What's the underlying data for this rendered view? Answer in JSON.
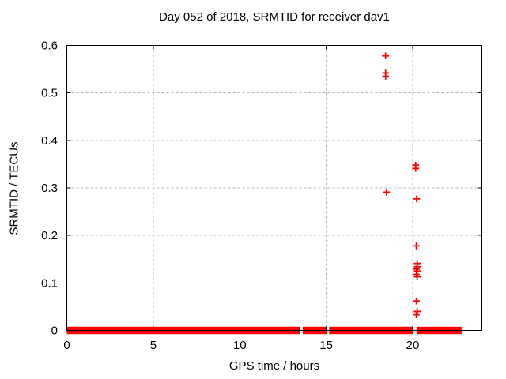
{
  "chart_data": {
    "type": "scatter",
    "title": "Day 052 of 2018, SRMTID for receiver dav1",
    "xlabel": "GPS time / hours",
    "ylabel": "SRMTID / TECUs",
    "xlim": [
      0,
      24
    ],
    "ylim": [
      0,
      0.6
    ],
    "xticks": [
      0,
      5,
      10,
      15,
      20
    ],
    "yticks": [
      0,
      0.1,
      0.2,
      0.3,
      0.4,
      0.5,
      0.6
    ],
    "grid": true,
    "legend_position": "none",
    "marker_style": "plus",
    "marker_color": "#ff0000",
    "grid_color": "#b4b4b4",
    "border_color": "#000000",
    "series": [
      {
        "name": "SRMTID",
        "color": "#ff0000",
        "outlier_points": [
          [
            18.43,
            0.578
          ],
          [
            18.43,
            0.542
          ],
          [
            18.43,
            0.535
          ],
          [
            18.49,
            0.291
          ],
          [
            20.17,
            0.348
          ],
          [
            20.17,
            0.341
          ],
          [
            20.23,
            0.277
          ],
          [
            20.21,
            0.178
          ],
          [
            20.26,
            0.141
          ],
          [
            20.26,
            0.134
          ],
          [
            20.21,
            0.129
          ],
          [
            20.26,
            0.125
          ],
          [
            20.21,
            0.118
          ],
          [
            20.26,
            0.113
          ],
          [
            20.21,
            0.062
          ],
          [
            20.26,
            0.04
          ],
          [
            20.21,
            0.033
          ]
        ],
        "zero_band_value": 0,
        "zero_band_segments_hours": [
          [
            0,
            13.5
          ],
          [
            13.64,
            15.03
          ],
          [
            15.17,
            20.01
          ],
          [
            20.22,
            22.83
          ]
        ],
        "zero_band_note": "dense + markers at ~0 TECUs forming a solid band"
      }
    ]
  }
}
